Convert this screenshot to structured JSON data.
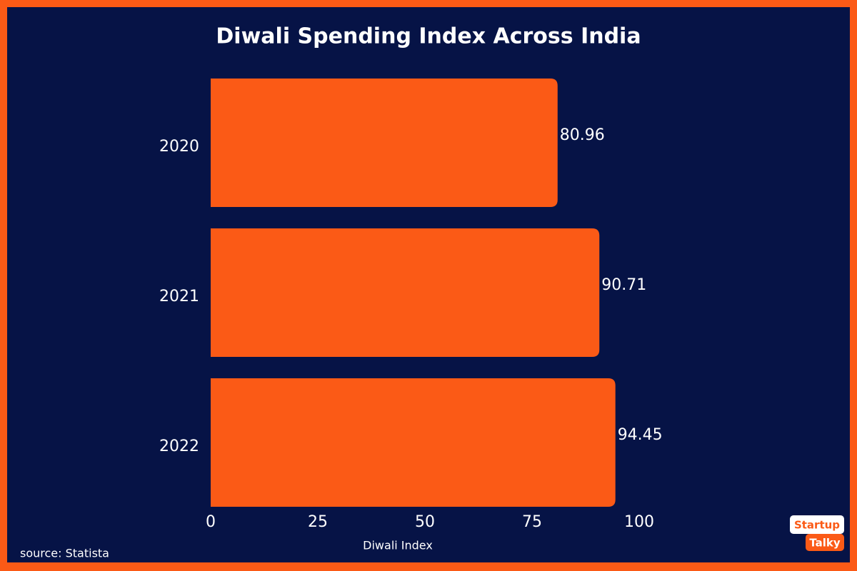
{
  "chart_data": {
    "type": "bar",
    "orientation": "horizontal",
    "title": "Diwali Spending Index Across India",
    "categories": [
      "2020",
      "2021",
      "2022"
    ],
    "values": [
      80.96,
      90.71,
      94.45
    ],
    "color": "#fb5a16",
    "xlim": [
      0,
      100
    ],
    "xticks": [
      0,
      25,
      50,
      75,
      100
    ],
    "x_label": "Diwali Index",
    "grid": false,
    "source": "source: Statista"
  },
  "logo": {
    "line1": "Startup",
    "line2": "Talky"
  }
}
